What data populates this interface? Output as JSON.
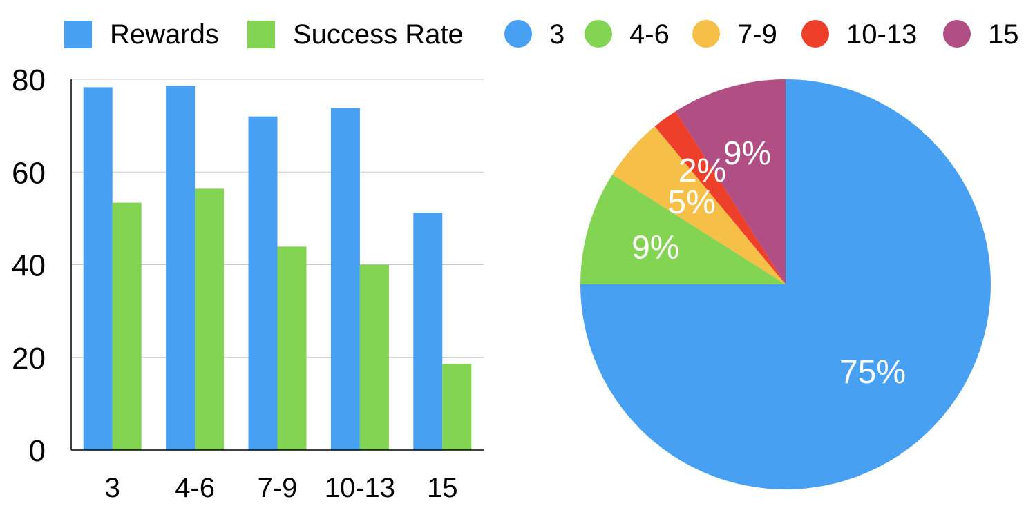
{
  "chart_data": [
    {
      "type": "bar",
      "categories": [
        "3",
        "4-6",
        "7-9",
        "10-13",
        "15"
      ],
      "series": [
        {
          "name": "Rewards",
          "color": "#48a0f2",
          "values": [
            78.3,
            78.6,
            72.0,
            73.8,
            51.2
          ]
        },
        {
          "name": "Success Rate",
          "color": "#82d452",
          "values": [
            53.4,
            56.4,
            43.9,
            40.0,
            18.6
          ]
        }
      ],
      "yticks": [
        "0",
        "20",
        "40",
        "60",
        "80"
      ],
      "ylim": [
        0,
        80
      ],
      "grid": true,
      "legend": "top-left"
    },
    {
      "type": "pie",
      "labels": [
        "3",
        "4-6",
        "7-9",
        "10-13",
        "15"
      ],
      "values": [
        75,
        9,
        5,
        2,
        9
      ],
      "value_labels": [
        "75%",
        "9%",
        "5%",
        "2%",
        "9%"
      ],
      "colors": [
        "#48a0f2",
        "#82d452",
        "#f5bf48",
        "#ee3f2a",
        "#b14e84"
      ],
      "legend": "top-right"
    }
  ]
}
